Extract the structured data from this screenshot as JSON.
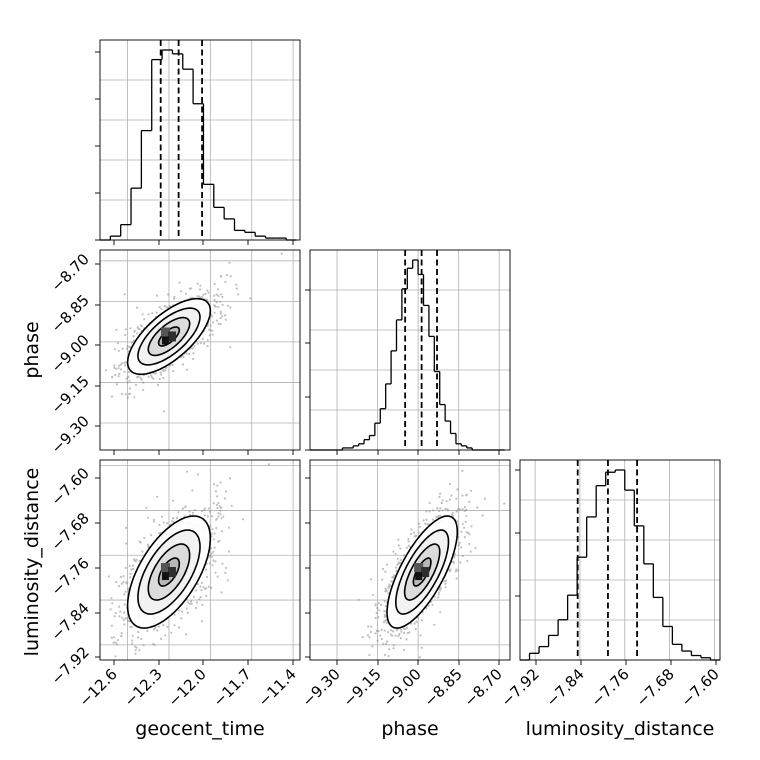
{
  "chart_data": {
    "type": "corner",
    "title": "",
    "parameters": [
      "geocent_time",
      "phase",
      "luminosity_distance"
    ],
    "axis_labels": {
      "geocent_time": "geocent_time",
      "phase": "phase",
      "luminosity_distance": "luminosity_distance"
    },
    "ranges": {
      "geocent_time": [
        -12.8,
        -11.35
      ],
      "phase": [
        -9.4,
        -8.66
      ],
      "luminosity_distance": [
        -7.947,
        -7.59
      ]
    },
    "ticks": {
      "geocent_time": [
        -12.6,
        -12.3,
        -12.0,
        -11.7,
        -11.4
      ],
      "phase": [
        -9.3,
        -9.15,
        -9.0,
        -8.85,
        -8.7
      ],
      "luminosity_distance": [
        -7.92,
        -7.84,
        -7.76,
        -7.68,
        -7.6
      ]
    },
    "tick_labels": {
      "geocent_time": [
        "−12.6",
        "−12.3",
        "−12.0",
        "−11.7",
        "−11.4"
      ],
      "phase": [
        "−9.30",
        "−9.15",
        "−9.00",
        "−8.85",
        "−8.70"
      ],
      "luminosity_distance": [
        "−7.92",
        "−7.84",
        "−7.76",
        "−7.68",
        "−7.60"
      ]
    },
    "quantiles": {
      "geocent_time": [
        -12.36,
        -12.23,
        -12.06
      ],
      "phase": [
        -9.048,
        -8.987,
        -8.93
      ],
      "luminosity_distance": [
        -7.844,
        -7.79,
        -7.738
      ]
    },
    "histograms": {
      "geocent_time": {
        "bin_edges": [
          -12.8,
          -12.725,
          -12.65,
          -12.575,
          -12.5,
          -12.425,
          -12.35,
          -12.275,
          -12.2,
          -12.125,
          -12.05,
          -11.975,
          -11.9,
          -11.825,
          -11.75,
          -11.675,
          -11.6,
          -11.525,
          -11.45,
          -11.375
        ],
        "counts": [
          0,
          2,
          8,
          27,
          57,
          94,
          99,
          97,
          89,
          71,
          29,
          17,
          11,
          5,
          4,
          2,
          1,
          1,
          0
        ]
      },
      "phase": {
        "bin_edges": [
          -9.4,
          -9.38,
          -9.36,
          -9.34,
          -9.32,
          -9.3,
          -9.28,
          -9.26,
          -9.24,
          -9.22,
          -9.2,
          -9.18,
          -9.16,
          -9.14,
          -9.12,
          -9.1,
          -9.08,
          -9.06,
          -9.04,
          -9.02,
          -9.0,
          -8.98,
          -8.96,
          -8.94,
          -8.92,
          -8.9,
          -8.88,
          -8.86,
          -8.84,
          -8.82,
          -8.8,
          -8.78,
          -8.76,
          -8.74,
          -8.72,
          -8.7,
          -8.68
        ],
        "counts": [
          0,
          0,
          0,
          0,
          0,
          0,
          1,
          1,
          2,
          3,
          5,
          7,
          13,
          20,
          32,
          48,
          63,
          78,
          88,
          92,
          85,
          70,
          55,
          38,
          22,
          14,
          8,
          3,
          2,
          1,
          0,
          0,
          0,
          0,
          0,
          0
        ]
      },
      "luminosity_distance": {
        "bin_edges": [
          -7.947,
          -7.93,
          -7.913,
          -7.896,
          -7.879,
          -7.862,
          -7.845,
          -7.828,
          -7.811,
          -7.794,
          -7.777,
          -7.76,
          -7.743,
          -7.726,
          -7.709,
          -7.692,
          -7.675,
          -7.658,
          -7.641,
          -7.624,
          -7.607,
          -7.59
        ],
        "counts": [
          0,
          3,
          6,
          11,
          18,
          29,
          46,
          64,
          78,
          84,
          85,
          76,
          60,
          43,
          28,
          15,
          7,
          4,
          2,
          1,
          0
        ]
      }
    },
    "pairs": [
      {
        "x": "geocent_time",
        "y": "phase",
        "center": [
          -12.3,
          -8.98
        ],
        "sigma": [
          0.15,
          0.07
        ],
        "rho": 0.68
      },
      {
        "x": "geocent_time",
        "y": "luminosity_distance",
        "center": [
          -12.3,
          -7.79
        ],
        "sigma": [
          0.15,
          0.05
        ],
        "rho": 0.6
      },
      {
        "x": "phase",
        "y": "luminosity_distance",
        "center": [
          -8.985,
          -7.79
        ],
        "sigma": [
          0.065,
          0.05
        ],
        "rho": 0.72
      }
    ],
    "contour_levels_sigma": [
      0.5,
      1.0,
      1.5,
      2.0
    ],
    "grid": true,
    "legend": "none"
  }
}
